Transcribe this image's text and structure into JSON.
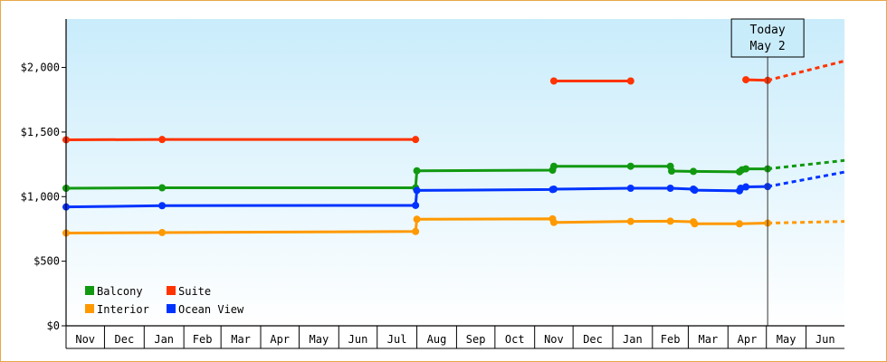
{
  "chart_data": {
    "type": "line",
    "title": "",
    "xlabel": "",
    "ylabel": "",
    "ylim": [
      0,
      2375
    ],
    "yticks": [
      0,
      500,
      1000,
      1500,
      2000
    ],
    "ytick_labels": [
      "$0",
      "$500",
      "$1,000",
      "$1,500",
      "$2,000"
    ],
    "xlim": [
      "2019-11-01",
      "2021-07-01"
    ],
    "x_tick_labels": [
      "Nov",
      "Dec",
      "Jan",
      "Feb",
      "Mar",
      "Apr",
      "May",
      "Jun",
      "Jul",
      "Aug",
      "Sep",
      "Oct",
      "Nov",
      "Dec",
      "Jan",
      "Feb",
      "Mar",
      "Apr",
      "May",
      "Jun"
    ],
    "grid": false,
    "legend_position": "bottom-left",
    "today": {
      "date": "2021-05-02",
      "label_line1": "Today",
      "label_line2": "May 2"
    },
    "series": [
      {
        "name": "Balcony",
        "color": "#119911",
        "points": [
          [
            "2019-11-01",
            1065
          ],
          [
            "2020-01-15",
            1068
          ],
          [
            "2020-07-31",
            1068
          ],
          [
            "2020-08-01",
            1200
          ],
          [
            "2020-11-15",
            1205
          ],
          [
            "2020-11-16",
            1235
          ],
          [
            "2021-01-15",
            1235
          ],
          [
            "2021-02-15",
            1235
          ],
          [
            "2021-02-16",
            1198
          ],
          [
            "2021-03-05",
            1195
          ],
          [
            "2021-04-10",
            1192
          ],
          [
            "2021-04-12",
            1208
          ],
          [
            "2021-04-15",
            1215
          ],
          [
            "2021-05-02",
            1215
          ]
        ],
        "forecast": [
          [
            "2021-05-02",
            1215
          ],
          [
            "2021-07-01",
            1280
          ]
        ]
      },
      {
        "name": "Suite",
        "color": "#ff3300",
        "points": [
          [
            "2019-11-01",
            1440
          ],
          [
            "2020-01-15",
            1442
          ],
          [
            "2020-07-31",
            1442
          ]
        ],
        "segments": [
          [
            [
              "2020-11-16",
              1895
            ],
            [
              "2021-01-15",
              1895
            ]
          ],
          [
            [
              "2021-04-15",
              1905
            ],
            [
              "2021-05-02",
              1900
            ]
          ]
        ],
        "forecast": [
          [
            "2021-05-02",
            1900
          ],
          [
            "2021-07-01",
            2050
          ]
        ]
      },
      {
        "name": "Interior",
        "color": "#ff9900",
        "points": [
          [
            "2019-11-01",
            718
          ],
          [
            "2020-01-15",
            722
          ],
          [
            "2020-07-31",
            730
          ],
          [
            "2020-08-01",
            825
          ],
          [
            "2020-11-15",
            828
          ],
          [
            "2020-11-16",
            800
          ],
          [
            "2021-01-15",
            808
          ],
          [
            "2021-02-15",
            810
          ],
          [
            "2021-03-05",
            805
          ],
          [
            "2021-03-06",
            790
          ],
          [
            "2021-04-10",
            790
          ],
          [
            "2021-05-02",
            795
          ]
        ],
        "forecast": [
          [
            "2021-05-02",
            795
          ],
          [
            "2021-07-01",
            808
          ]
        ]
      },
      {
        "name": "Ocean View",
        "color": "#0033ff",
        "points": [
          [
            "2019-11-01",
            920
          ],
          [
            "2020-01-15",
            930
          ],
          [
            "2020-07-31",
            932
          ],
          [
            "2020-08-01",
            1048
          ],
          [
            "2020-11-15",
            1055
          ],
          [
            "2020-11-16",
            1058
          ],
          [
            "2021-01-15",
            1065
          ],
          [
            "2021-02-15",
            1065
          ],
          [
            "2021-03-05",
            1058
          ],
          [
            "2021-03-06",
            1050
          ],
          [
            "2021-04-10",
            1045
          ],
          [
            "2021-04-11",
            1065
          ],
          [
            "2021-04-15",
            1075
          ],
          [
            "2021-05-02",
            1078
          ]
        ],
        "forecast": [
          [
            "2021-05-02",
            1078
          ],
          [
            "2021-07-01",
            1190
          ]
        ]
      }
    ]
  },
  "colors": {
    "plot_top": "#c9ecfb",
    "plot_bottom": "#ffffff",
    "frame_border": "#e8a64a",
    "axis": "#000000"
  }
}
